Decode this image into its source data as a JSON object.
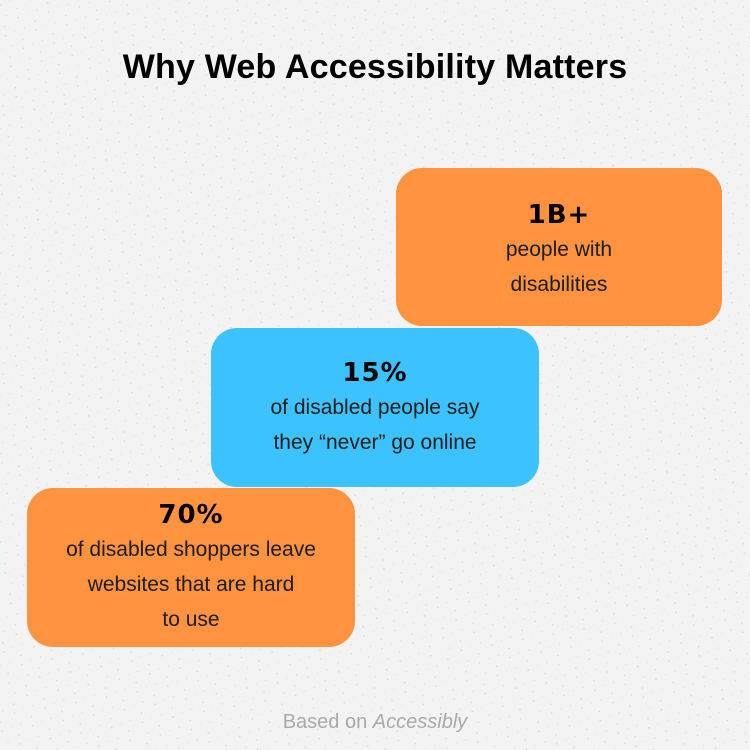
{
  "title": "Why Web Accessibility Matters",
  "cards": [
    {
      "stat": "1B+",
      "description": "people with\ndisabilities",
      "color": "#ff9340"
    },
    {
      "stat": "15%",
      "description": "of disabled people say\nthey “never” go online",
      "color": "#3cc2fe"
    },
    {
      "stat": "70%",
      "description": "of disabled shoppers leave\nwebsites that are hard\nto use",
      "color": "#ff9340"
    }
  ],
  "footer": {
    "prefix": "Based on",
    "source": "Accessibly"
  }
}
